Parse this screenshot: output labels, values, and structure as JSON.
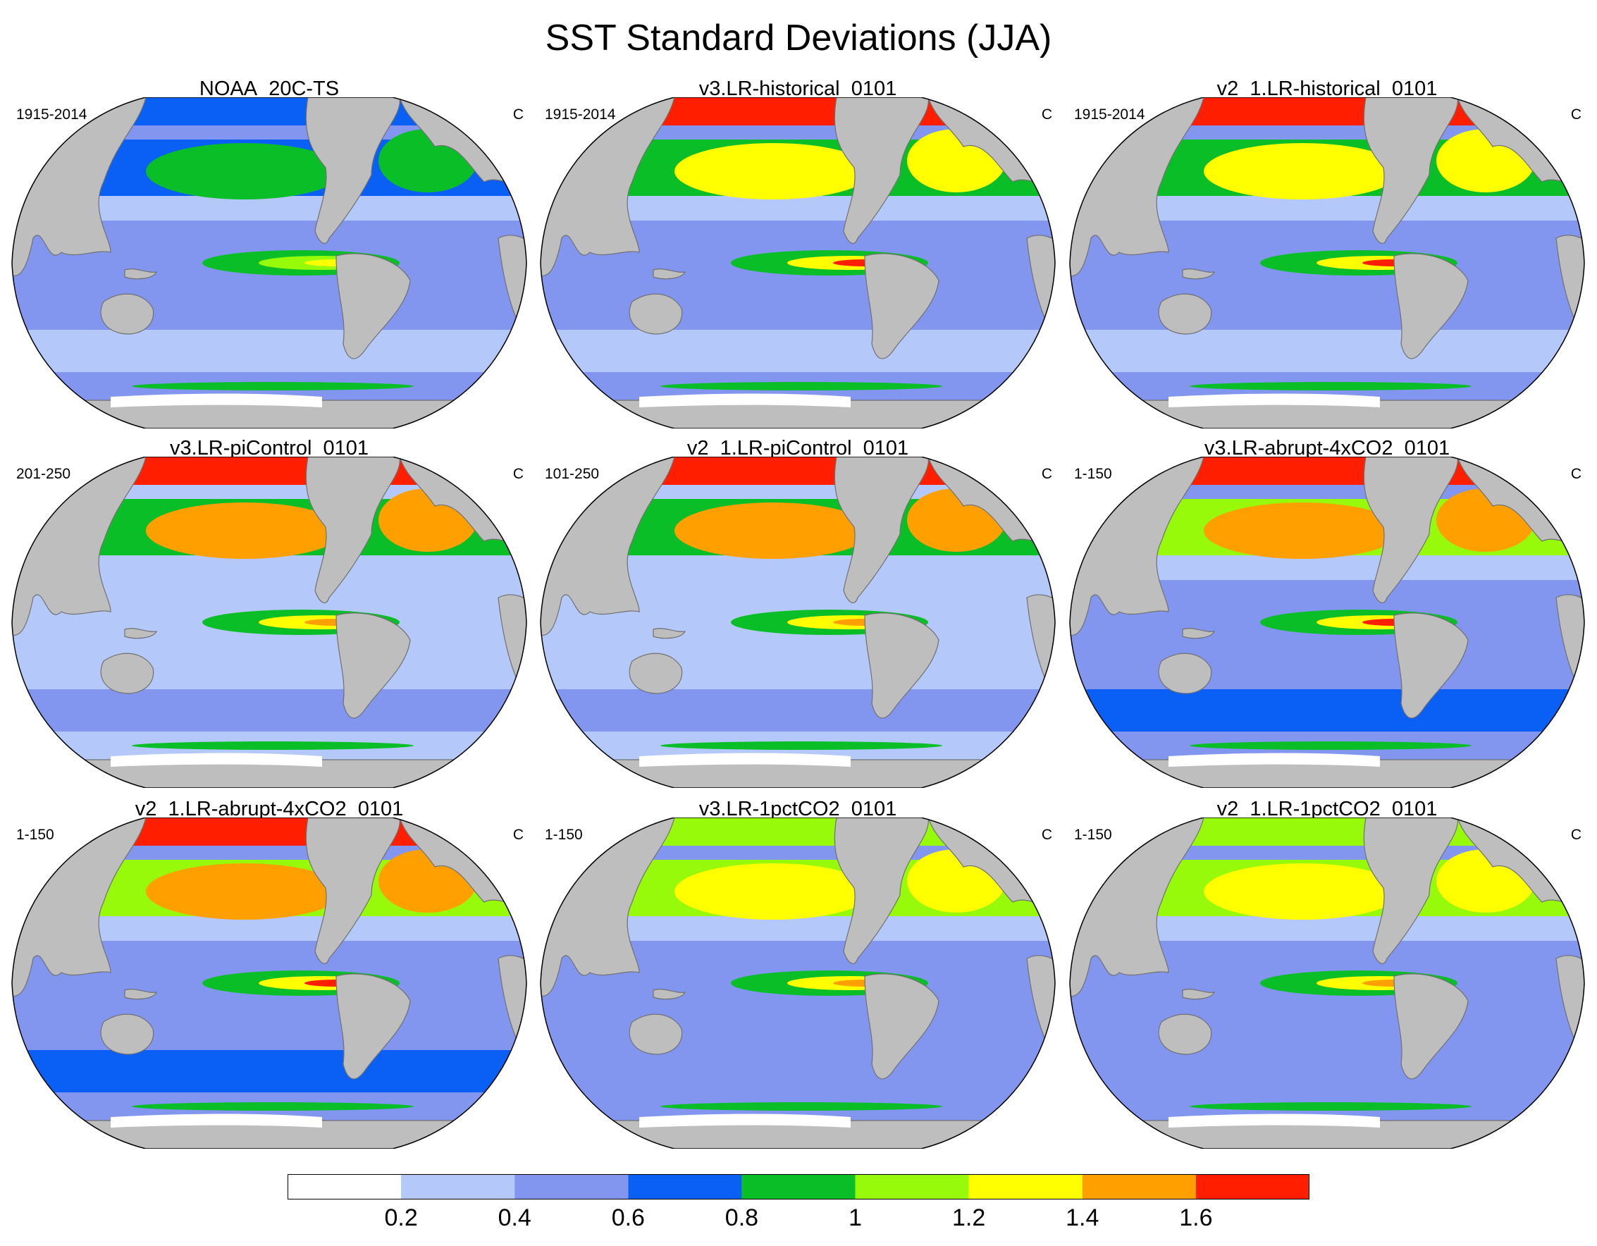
{
  "title": "SST Standard Deviations (JJA)",
  "panels": [
    {
      "title": "NOAA_20C-TS",
      "period": "1915-2014",
      "units": "C",
      "profile": "obs"
    },
    {
      "title": "v3.LR-historical_0101",
      "period": "1915-2014",
      "units": "C",
      "profile": "hist"
    },
    {
      "title": "v2_1.LR-historical_0101",
      "period": "1915-2014",
      "units": "C",
      "profile": "hist"
    },
    {
      "title": "v3.LR-piControl_0101",
      "period": "201-250",
      "units": "C",
      "profile": "pi"
    },
    {
      "title": "v2_1.LR-piControl_0101",
      "period": "101-250",
      "units": "C",
      "profile": "pi"
    },
    {
      "title": "v3.LR-abrupt-4xCO2_0101",
      "period": "1-150",
      "units": "C",
      "profile": "abrupt"
    },
    {
      "title": "v2_1.LR-abrupt-4xCO2_0101",
      "period": "1-150",
      "units": "C",
      "profile": "abrupt"
    },
    {
      "title": "v3.LR-1pctCO2_0101",
      "period": "1-150",
      "units": "C",
      "profile": "pct"
    },
    {
      "title": "v2_1.LR-1pctCO2_0101",
      "period": "1-150",
      "units": "C",
      "profile": "pct"
    }
  ],
  "colorbar": {
    "colors": [
      "#ffffff",
      "#b4c8fa",
      "#8296f0",
      "#0a5ff5",
      "#0abe28",
      "#96fa0a",
      "#ffff00",
      "#ffa000",
      "#ff1e00"
    ],
    "labels": [
      "0.2",
      "0.4",
      "0.6",
      "0.8",
      "1",
      "1.2",
      "1.4",
      "1.6"
    ]
  },
  "map_colors": {
    "land": "#bebebe",
    "ice": "#ffffff",
    "coast": "#707070"
  }
}
